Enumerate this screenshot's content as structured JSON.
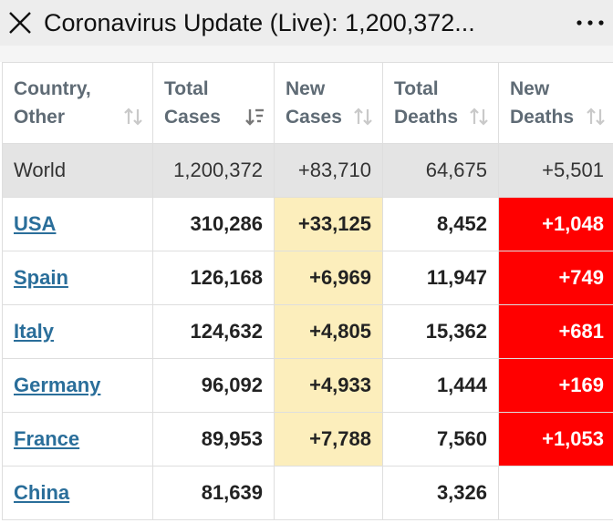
{
  "header": {
    "title": "Coronavirus Update (Live): 1,200,372..."
  },
  "table": {
    "columns": [
      {
        "line1": "Country,",
        "line2": "Other"
      },
      {
        "line1": "Total",
        "line2": "Cases"
      },
      {
        "line1": "New",
        "line2": "Cases"
      },
      {
        "line1": "Total",
        "line2": "Deaths"
      },
      {
        "line1": "New",
        "line2": "Deaths"
      }
    ],
    "world": {
      "country": "World",
      "total_cases": "1,200,372",
      "new_cases": "+83,710",
      "total_deaths": "64,675",
      "new_deaths": "+5,501"
    },
    "rows": [
      {
        "country": "USA",
        "total_cases": "310,286",
        "new_cases": "+33,125",
        "total_deaths": "8,452",
        "new_deaths": "+1,048"
      },
      {
        "country": "Spain",
        "total_cases": "126,168",
        "new_cases": "+6,969",
        "total_deaths": "11,947",
        "new_deaths": "+749"
      },
      {
        "country": "Italy",
        "total_cases": "124,632",
        "new_cases": "+4,805",
        "total_deaths": "15,362",
        "new_deaths": "+681"
      },
      {
        "country": "Germany",
        "total_cases": "96,092",
        "new_cases": "+4,933",
        "total_deaths": "1,444",
        "new_deaths": "+169"
      },
      {
        "country": "France",
        "total_cases": "89,953",
        "new_cases": "+7,788",
        "total_deaths": "7,560",
        "new_deaths": "+1,053"
      },
      {
        "country": "China",
        "total_cases": "81,639",
        "new_cases": "",
        "total_deaths": "3,326",
        "new_deaths": ""
      }
    ]
  },
  "colors": {
    "new_cases_highlight": "#fceebc",
    "new_deaths_highlight": "#ff0000",
    "link": "#2a6e9a",
    "world_row": "#e4e4e4"
  },
  "icons": {
    "close": "close-icon",
    "more": "more-dots-icon",
    "sort": "sort-icon",
    "sort_active": "sort-desc-icon"
  }
}
